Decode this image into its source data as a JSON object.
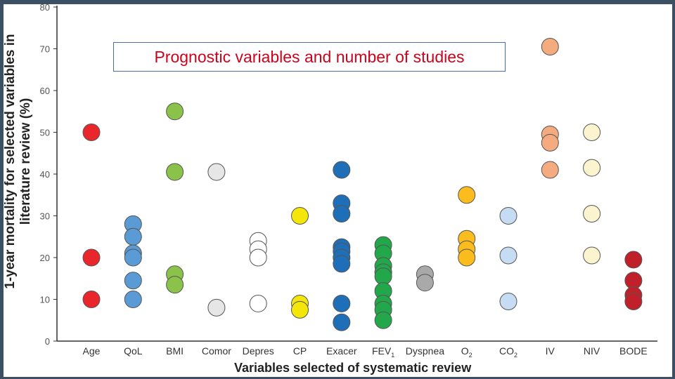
{
  "chart_data": {
    "type": "scatter",
    "title": "Prognostic variables and number of studies",
    "xlabel": "Variables selected of systematic review",
    "ylabel": "1-year mortality for selected variables in literature review (%)",
    "ylim": [
      0,
      80
    ],
    "yticks": [
      0,
      10,
      20,
      30,
      40,
      50,
      60,
      70,
      80
    ],
    "grid": false,
    "categories": [
      {
        "label": "Age",
        "sub": ""
      },
      {
        "label": "QoL",
        "sub": ""
      },
      {
        "label": "BMI",
        "sub": ""
      },
      {
        "label": "Comor",
        "sub": ""
      },
      {
        "label": "Depres",
        "sub": ""
      },
      {
        "label": "CP",
        "sub": ""
      },
      {
        "label": "Exacer",
        "sub": ""
      },
      {
        "label": "FEV",
        "sub": "1"
      },
      {
        "label": "Dyspnea",
        "sub": ""
      },
      {
        "label": "O",
        "sub": "2"
      },
      {
        "label": "CO",
        "sub": "2"
      },
      {
        "label": "IV",
        "sub": ""
      },
      {
        "label": "NIV",
        "sub": ""
      },
      {
        "label": "BODE",
        "sub": ""
      }
    ],
    "series": [
      {
        "color": "#e8262b",
        "values": [
          50,
          20,
          10
        ]
      },
      {
        "color": "#5b9bd5",
        "values": [
          28,
          25,
          21,
          20,
          14.5,
          10
        ]
      },
      {
        "color": "#8bc34a",
        "values": [
          55,
          40.5,
          16,
          13.5
        ]
      },
      {
        "color": "#e6e6e6",
        "values": [
          40.5,
          8
        ]
      },
      {
        "color": "#ffffff",
        "values": [
          24,
          22,
          20,
          9
        ]
      },
      {
        "color": "#f5e60a",
        "values": [
          30,
          9,
          7.5
        ]
      },
      {
        "color": "#1f6fb8",
        "values": [
          41,
          33,
          30.5,
          22.5,
          21.5,
          20,
          18.5,
          9,
          4.5
        ]
      },
      {
        "color": "#22a84a",
        "values": [
          23,
          21,
          18,
          16.5,
          15.5,
          12,
          9,
          7.5,
          5
        ]
      },
      {
        "color": "#a9a9a9",
        "values": [
          16,
          14
        ]
      },
      {
        "color": "#fbbc1e",
        "values": [
          35,
          24.5,
          22,
          20
        ]
      },
      {
        "color": "#c6dcf2",
        "values": [
          30,
          20.5,
          9.5
        ]
      },
      {
        "color": "#f4ab80",
        "values": [
          70.5,
          49.5,
          47.5,
          41
        ]
      },
      {
        "color": "#fcf3cf",
        "values": [
          50,
          41.5,
          30.5,
          20.5
        ]
      },
      {
        "color": "#c0202a",
        "values": [
          19.5,
          14.5,
          11,
          9.5
        ]
      }
    ]
  }
}
